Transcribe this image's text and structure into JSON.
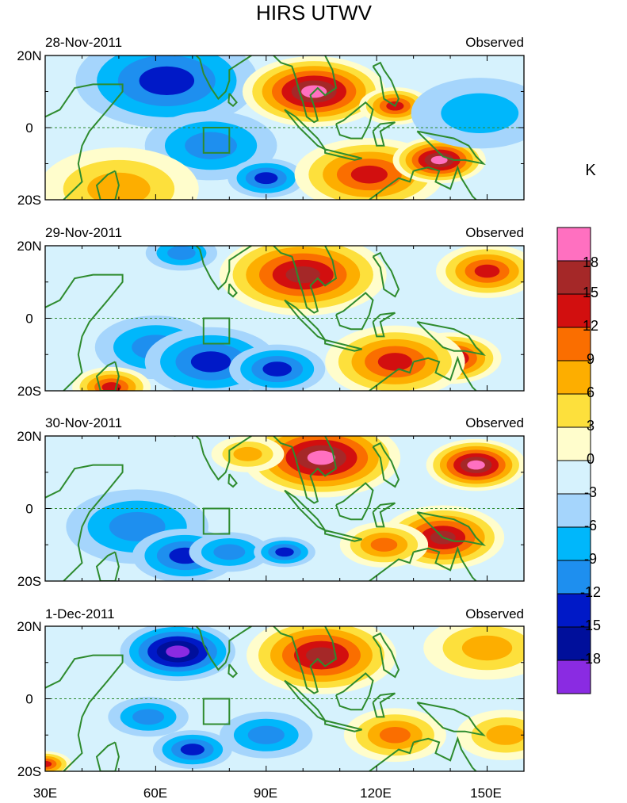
{
  "chart_data": {
    "type": "heatmap",
    "title": "HIRS UTWV",
    "colorbar": {
      "unit": "K",
      "tick_labels": [
        "18",
        "15",
        "12",
        "9",
        "6",
        "3",
        "0",
        "-3",
        "-6",
        "-9",
        "-12",
        "-15",
        "-18"
      ],
      "colors": [
        "#ff70c0",
        "#a52828",
        "#d20f0f",
        "#fa6e00",
        "#fdae00",
        "#fde03c",
        "#fffdcc",
        "#d6f2fd",
        "#a5d5fc",
        "#00b7fb",
        "#1e8fef",
        "#0019c7",
        "#000f9b",
        "#8a2be2"
      ]
    },
    "x_ticks": [
      "30E",
      "60E",
      "90E",
      "120E",
      "150E"
    ],
    "x_tick_values": [
      30,
      60,
      90,
      120,
      150
    ],
    "xlim": [
      30,
      160
    ],
    "y_ticks": [
      "20N",
      "0",
      "20S"
    ],
    "ylim": [
      -20,
      20
    ],
    "panels": [
      {
        "date": "28-Nov-2011",
        "label": "Observed",
        "features": [
          {
            "lon": 67,
            "lat": 16,
            "value": -19,
            "r": 11
          },
          {
            "lon": 63,
            "lat": 13,
            "value": -13,
            "r": 18
          },
          {
            "lon": 75,
            "lat": -5,
            "value": -12,
            "r": 13
          },
          {
            "lon": 90,
            "lat": -14,
            "value": -14,
            "r": 8
          },
          {
            "lon": 103,
            "lat": 10,
            "value": 19,
            "r": 16
          },
          {
            "lon": 118,
            "lat": -13,
            "value": 14,
            "r": 17
          },
          {
            "lon": 137,
            "lat": -9,
            "value": 19,
            "r": 10
          },
          {
            "lon": 50,
            "lat": -17,
            "value": 7,
            "r": 16
          },
          {
            "lon": 125,
            "lat": 6,
            "value": 12,
            "r": 7
          },
          {
            "lon": 148,
            "lat": 4,
            "value": -8,
            "r": 14
          }
        ]
      },
      {
        "date": "29-Nov-2011",
        "label": "Observed",
        "features": [
          {
            "lon": 60,
            "lat": -8,
            "value": -12,
            "r": 12
          },
          {
            "lon": 75,
            "lat": -12,
            "value": -13,
            "r": 13
          },
          {
            "lon": 93,
            "lat": -14,
            "value": -13,
            "r": 10
          },
          {
            "lon": 67,
            "lat": 18,
            "value": -12,
            "r": 8
          },
          {
            "lon": 100,
            "lat": 12,
            "value": 16,
            "r": 19
          },
          {
            "lon": 140,
            "lat": -11,
            "value": 17,
            "r": 11
          },
          {
            "lon": 125,
            "lat": -12,
            "value": 14,
            "r": 14
          },
          {
            "lon": 150,
            "lat": 13,
            "value": 14,
            "r": 10
          },
          {
            "lon": 48,
            "lat": -19,
            "value": 12,
            "r": 8
          }
        ]
      },
      {
        "date": "30-Nov-2011",
        "label": "Observed",
        "features": [
          {
            "lon": 55,
            "lat": -5,
            "value": -10,
            "r": 14
          },
          {
            "lon": 68,
            "lat": -13,
            "value": -14,
            "r": 11
          },
          {
            "lon": 80,
            "lat": -12,
            "value": -12,
            "r": 9
          },
          {
            "lon": 95,
            "lat": -12,
            "value": -13,
            "r": 7
          },
          {
            "lon": 105,
            "lat": 14,
            "value": 19,
            "r": 17
          },
          {
            "lon": 147,
            "lat": 12,
            "value": 19,
            "r": 10
          },
          {
            "lon": 138,
            "lat": -8,
            "value": 16,
            "r": 12
          },
          {
            "lon": 122,
            "lat": -10,
            "value": 10,
            "r": 9
          },
          {
            "lon": 85,
            "lat": 15,
            "value": 8,
            "r": 8
          }
        ]
      },
      {
        "date": "1-Dec-2011",
        "label": "Observed",
        "features": [
          {
            "lon": 66,
            "lat": 13,
            "value": -19,
            "r": 12
          },
          {
            "lon": 58,
            "lat": -5,
            "value": -12,
            "r": 9
          },
          {
            "lon": 70,
            "lat": -14,
            "value": -15,
            "r": 9
          },
          {
            "lon": 90,
            "lat": -10,
            "value": -12,
            "r": 10
          },
          {
            "lon": 105,
            "lat": 12,
            "value": 16,
            "r": 15
          },
          {
            "lon": 125,
            "lat": -10,
            "value": 9,
            "r": 10
          },
          {
            "lon": 155,
            "lat": -10,
            "value": 8,
            "r": 10
          },
          {
            "lon": 150,
            "lat": 14,
            "value": 7,
            "r": 14
          },
          {
            "lon": 30,
            "lat": -18,
            "value": 14,
            "r": 6
          }
        ]
      }
    ]
  }
}
